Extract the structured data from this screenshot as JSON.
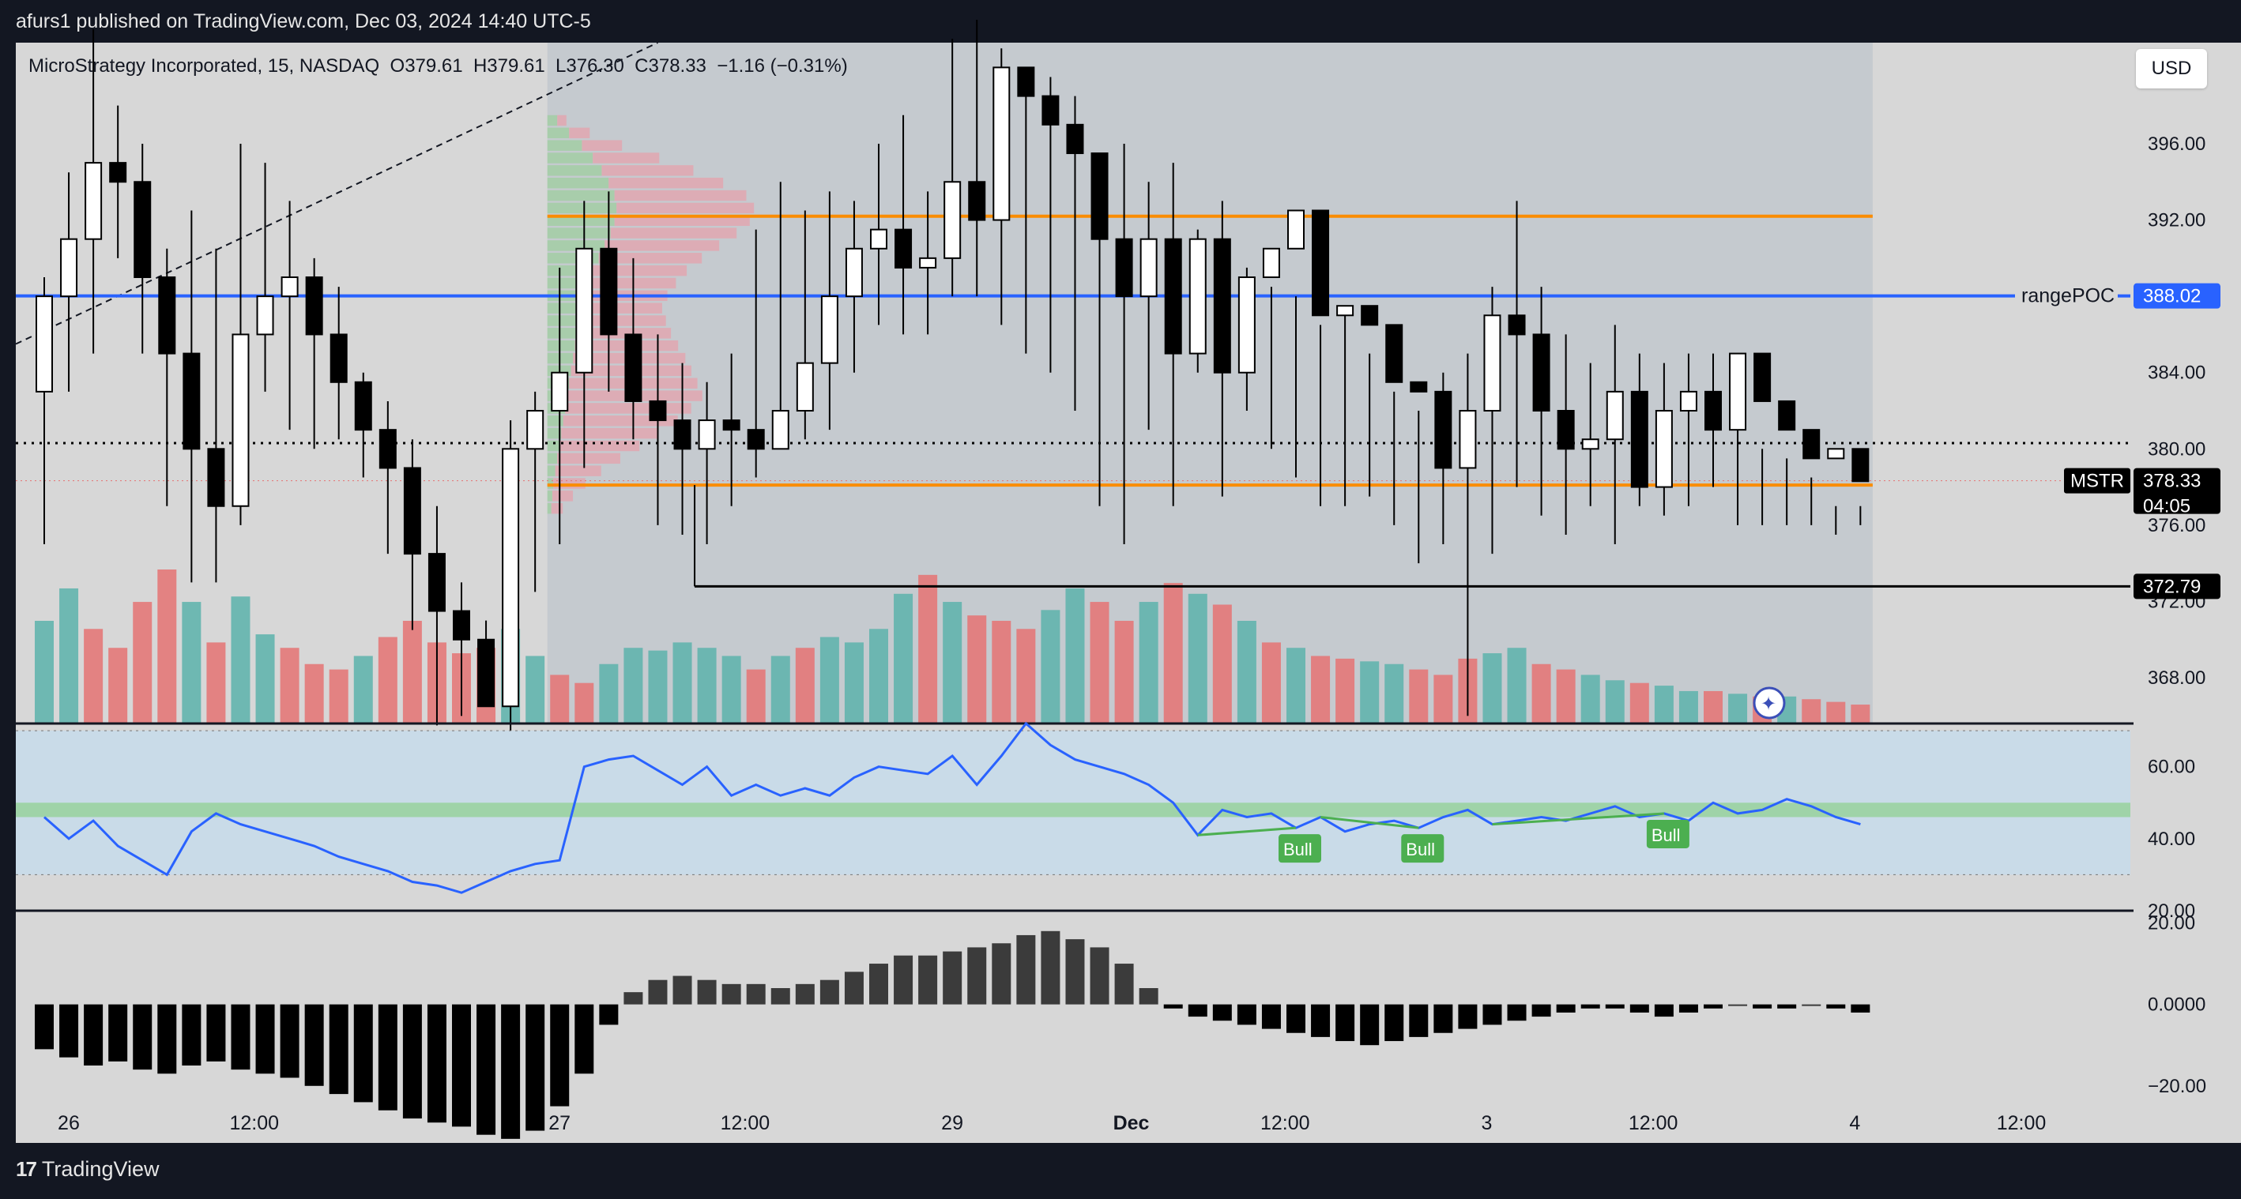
{
  "header": {
    "publish_text": "afurs1 published on TradingView.com, Dec 03, 2024 14:40 UTC-5"
  },
  "footer": {
    "brand": "TradingView",
    "logo_glyph": "17"
  },
  "currency_button": "USD",
  "legend": {
    "name": "MicroStrategy Incorporated, 15, NASDAQ",
    "o_label": "O",
    "o": "379.61",
    "h_label": "H",
    "h": "379.61",
    "l_label": "L",
    "l": "376.30",
    "c_label": "C",
    "c": "378.33",
    "change": "−1.16 (−0.31%)"
  },
  "colors": {
    "background": "#d7d7d7",
    "profile_panel": "#c5cacf",
    "value_area": "#fa8c00",
    "poc_line": "#2962ff",
    "up_volume": "#5cb3ac",
    "down_volume": "#e57373",
    "rsi_line": "#2962ff",
    "rsi_band": "#c9dbe8",
    "rsi_mid_band": "#9fd3a8",
    "divergence": "#4caf50",
    "histogram": "#000000"
  },
  "chart_data": [
    {
      "type": "candlestick",
      "title": "MicroStrategy Incorporated, 15, NASDAQ",
      "symbol": "MSTR",
      "ylim": [
        365.6,
        401.3
      ],
      "y_ticks": [
        "396.00",
        "392.00",
        "388.00",
        "384.00",
        "380.00",
        "376.00",
        "372.00",
        "368.00"
      ],
      "x_ticks": [
        {
          "i": 1,
          "label": "26"
        },
        {
          "i": 8,
          "label": "12:00"
        },
        {
          "i": 21,
          "label": "27"
        },
        {
          "i": 28,
          "label": "12:00"
        },
        {
          "i": 37,
          "label": "29"
        },
        {
          "i": 44,
          "label": "Dec"
        },
        {
          "i": 50,
          "label": "12:00"
        },
        {
          "i": 59,
          "label": "3"
        },
        {
          "i": 65,
          "label": "12:00"
        },
        {
          "i": 74,
          "label": "4"
        },
        {
          "i": 80,
          "label": "12:00"
        }
      ],
      "x_range": [
        0,
        85
      ],
      "opens": [
        383.0,
        388.0,
        391.0,
        395.0,
        394.0,
        389.0,
        385.0,
        380.0,
        377.0,
        386.0,
        388.0,
        389.0,
        386.0,
        383.5,
        381.0,
        379.0,
        374.5,
        371.5,
        370.0,
        366.5,
        380.0,
        382.0,
        384.0,
        390.5,
        386.0,
        382.5,
        381.5,
        380.0,
        381.5,
        381.0,
        380.0,
        382.0,
        384.5,
        388.0,
        390.5,
        391.5,
        389.5,
        390.0,
        394.0,
        392.0,
        400.0,
        398.5,
        397.0,
        395.5,
        391.0,
        388.0,
        391.0,
        385.0,
        391.0,
        384.0,
        389.0,
        390.5,
        392.5,
        387.0,
        387.5,
        386.5,
        383.5,
        383.0,
        379.0,
        382.0,
        387.0,
        386.0,
        382.0,
        380.0,
        380.5,
        383.0,
        378.0,
        382.0,
        383.0,
        381.0,
        385.0,
        382.5,
        381.0,
        379.5,
        380.0
      ],
      "highs": [
        389.0,
        394.5,
        402.0,
        398.0,
        396.0,
        390.5,
        392.5,
        390.5,
        396.0,
        395.0,
        393.0,
        390.0,
        388.5,
        384.0,
        382.5,
        380.5,
        377.0,
        373.0,
        371.0,
        381.5,
        383.0,
        389.5,
        393.0,
        393.5,
        390.0,
        386.0,
        384.5,
        383.5,
        385.0,
        391.5,
        394.0,
        392.5,
        393.5,
        393.0,
        396.0,
        397.5,
        393.5,
        401.5,
        402.5,
        401.0,
        398.5,
        399.5,
        398.5,
        393.5,
        396.0,
        394.0,
        395.0,
        391.5,
        393.0,
        389.5,
        388.5,
        388.0,
        386.5,
        387.5,
        385.0,
        383.0,
        382.0,
        384.0,
        385.0,
        388.5,
        393.0,
        388.5,
        386.0,
        384.5,
        386.5,
        385.0,
        384.5,
        385.0,
        385.0,
        382.0,
        380.0,
        379.5,
        378.5,
        377.0,
        377.0
      ],
      "lows": [
        375.0,
        383.0,
        385.0,
        390.0,
        385.0,
        377.0,
        373.0,
        373.0,
        376.0,
        383.0,
        381.0,
        380.0,
        380.5,
        378.5,
        374.5,
        370.5,
        365.5,
        366.0,
        366.5,
        365.0,
        372.5,
        375.0,
        379.0,
        383.0,
        380.5,
        376.0,
        375.5,
        375.0,
        377.0,
        378.5,
        380.0,
        380.5,
        381.0,
        384.0,
        386.5,
        386.0,
        386.0,
        388.0,
        388.0,
        386.5,
        385.0,
        384.0,
        382.0,
        377.0,
        375.0,
        381.0,
        377.0,
        384.0,
        377.5,
        382.0,
        380.0,
        378.5,
        377.0,
        377.0,
        377.5,
        376.0,
        374.0,
        375.0,
        366.0,
        374.5,
        378.0,
        376.5,
        375.5,
        377.0,
        375.0,
        377.0,
        376.5,
        377.0,
        378.0,
        376.0,
        376.0,
        376.0,
        376.0,
        375.5,
        376.0
      ],
      "closes": [
        388.0,
        391.0,
        395.0,
        394.0,
        389.0,
        385.0,
        380.0,
        377.0,
        386.0,
        388.0,
        389.0,
        386.0,
        383.5,
        381.0,
        379.0,
        374.5,
        371.5,
        370.0,
        366.5,
        380.0,
        382.0,
        384.0,
        390.5,
        386.0,
        382.5,
        381.5,
        380.0,
        381.5,
        381.0,
        380.0,
        382.0,
        384.5,
        388.0,
        390.5,
        391.5,
        389.5,
        390.0,
        394.0,
        392.0,
        400.0,
        398.5,
        397.0,
        395.5,
        391.0,
        388.0,
        391.0,
        385.0,
        391.0,
        384.0,
        389.0,
        390.5,
        392.5,
        387.0,
        387.5,
        386.5,
        383.5,
        383.0,
        379.0,
        382.0,
        387.0,
        386.0,
        382.0,
        380.0,
        380.5,
        383.0,
        378.0,
        382.0,
        383.0,
        381.0,
        385.0,
        382.5,
        381.0,
        379.5,
        380.0,
        378.3
      ],
      "hlines": [
        {
          "name": "rangePOC",
          "value": 388.02,
          "label": "388.02"
        },
        {
          "name": "VAH",
          "value": 392.2
        },
        {
          "name": "VAL",
          "value": 378.1
        },
        {
          "name": "support",
          "value": 372.79,
          "label": "372.79"
        },
        {
          "name": "prev-close-dotted",
          "value": 380.3
        }
      ],
      "price_tag": {
        "symbol": "MSTR",
        "price": "378.33",
        "countdown": "04:05"
      },
      "poc_text": "rangePOC"
    },
    {
      "type": "bar",
      "title": "Volume",
      "values": [
        38,
        50,
        35,
        28,
        45,
        57,
        45,
        30,
        47,
        33,
        28,
        22,
        20,
        25,
        32,
        38,
        30,
        26,
        28,
        35,
        25,
        18,
        15,
        22,
        28,
        27,
        30,
        28,
        25,
        20,
        25,
        28,
        32,
        30,
        35,
        48,
        55,
        45,
        40,
        38,
        35,
        42,
        50,
        45,
        38,
        45,
        52,
        48,
        44,
        38,
        30,
        28,
        25,
        24,
        23,
        22,
        20,
        18,
        24,
        26,
        28,
        22,
        20,
        18,
        16,
        15,
        14,
        12,
        12,
        11,
        10,
        10,
        9,
        8,
        7
      ],
      "colors": [
        "up",
        "up",
        "down",
        "down",
        "down",
        "down",
        "up",
        "down",
        "up",
        "up",
        "down",
        "down",
        "down",
        "up",
        "down",
        "down",
        "down",
        "down",
        "down",
        "up",
        "up",
        "down",
        "down",
        "up",
        "up",
        "up",
        "up",
        "up",
        "up",
        "down",
        "up",
        "down",
        "up",
        "up",
        "up",
        "up",
        "down",
        "up",
        "down",
        "down",
        "down",
        "up",
        "up",
        "down",
        "down",
        "up",
        "down",
        "up",
        "down",
        "up",
        "down",
        "up",
        "down",
        "down",
        "up",
        "up",
        "down",
        "down",
        "down",
        "up",
        "up",
        "down",
        "down",
        "up",
        "up",
        "down",
        "up",
        "up",
        "down",
        "up",
        "down",
        "up",
        "down",
        "down",
        "down"
      ]
    },
    {
      "type": "line",
      "title": "RSI",
      "ylim": [
        20,
        72
      ],
      "y_ticks": [
        "60.00",
        "40.00",
        "20.00"
      ],
      "bands": {
        "upper": 70,
        "lower": 30,
        "mid_high": 50,
        "mid_low": 46
      },
      "values": [
        46,
        40,
        45,
        38,
        34,
        30,
        42,
        47,
        44,
        42,
        40,
        38,
        35,
        33,
        31,
        28,
        27,
        25,
        28,
        31,
        33,
        34,
        60,
        62,
        63,
        59,
        55,
        60,
        52,
        55,
        52,
        54,
        52,
        57,
        60,
        59,
        58,
        63,
        55,
        63,
        72,
        66,
        62,
        60,
        58,
        55,
        50,
        41,
        48,
        46,
        47,
        43,
        46,
        42,
        44,
        45,
        43,
        46,
        48,
        44,
        45,
        46,
        45,
        47,
        49,
        46,
        47,
        45,
        50,
        47,
        48,
        51,
        49,
        46,
        44
      ]
    },
    {
      "type": "bar",
      "title": "Momentum histogram",
      "ylim": [
        -34,
        23
      ],
      "y_ticks": [
        "20.00",
        "0.0000",
        "−20.00"
      ],
      "values": [
        -11,
        -13,
        -15,
        -14,
        -16,
        -17,
        -15,
        -14,
        -16,
        -17,
        -18,
        -20,
        -22,
        -24,
        -26,
        -28,
        -29,
        -30,
        -32,
        -33,
        -31,
        -25,
        -17,
        -5,
        3,
        6,
        7,
        6,
        5,
        5,
        4,
        5,
        6,
        8,
        10,
        12,
        12,
        13,
        14,
        15,
        17,
        18,
        16,
        14,
        10,
        4,
        -1,
        -3,
        -4,
        -5,
        -6,
        -7,
        -8,
        -9,
        -10,
        -9,
        -8,
        -7,
        -6,
        -5,
        -4,
        -3,
        -2,
        -1,
        -1,
        -2,
        -3,
        -2,
        -1,
        0,
        -1,
        -1,
        0,
        -1,
        -2
      ]
    }
  ],
  "divergences": [
    {
      "label": "Bull",
      "from": 47,
      "to": 51
    },
    {
      "label": "Bull",
      "from": 52,
      "to": 56
    },
    {
      "label": "Bull",
      "from": 59,
      "to": 66
    }
  ],
  "profile": {
    "up_widths": [
      10,
      22,
      35,
      46,
      55,
      62,
      68,
      70,
      68,
      64,
      58,
      52,
      46,
      42,
      38,
      35,
      33,
      30,
      28,
      26,
      24,
      22,
      20,
      18,
      16,
      14,
      12,
      10,
      8,
      6,
      5,
      4
    ],
    "down_widths": [
      8,
      18,
      35,
      58,
      80,
      100,
      115,
      120,
      118,
      110,
      100,
      90,
      82,
      76,
      72,
      70,
      75,
      82,
      90,
      98,
      105,
      112,
      118,
      110,
      100,
      85,
      70,
      55,
      40,
      28,
      18,
      10
    ]
  }
}
